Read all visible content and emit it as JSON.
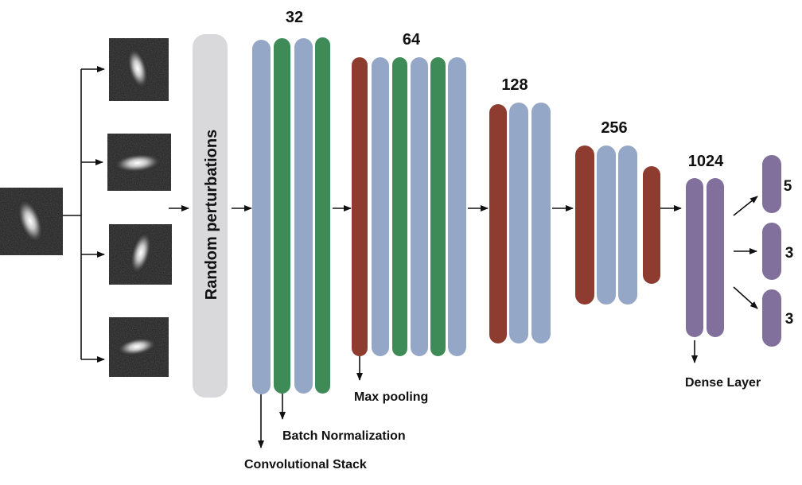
{
  "perturbation_label": "Random perturbations",
  "counts": {
    "conv32": "32",
    "conv64": "64",
    "conv128": "128",
    "conv256": "256",
    "dense": "1024",
    "out1": "5",
    "out2": "3",
    "out3": "3"
  },
  "annotations": {
    "max_pooling": "Max pooling",
    "batch_norm": "Batch Normalization",
    "conv_stack": "Convolutional Stack",
    "dense_layer": "Dense Layer"
  },
  "colors": {
    "conv": "#95a7c6",
    "batch_norm": "#3e8b58",
    "pool": "#8d3c2f",
    "dense": "#80709b",
    "perturb": "#d9d9db",
    "arrow": "#111111"
  }
}
